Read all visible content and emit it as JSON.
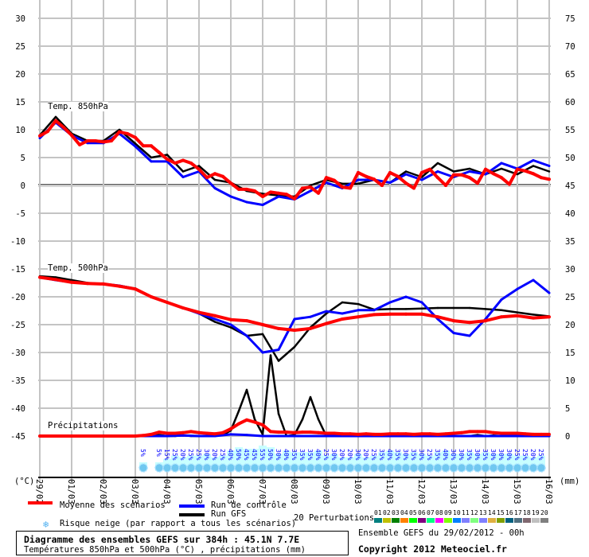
{
  "chart_data": {
    "type": "line",
    "x_unit": "forecast hour",
    "x_tick_labels": [
      "29/02",
      "01/03",
      "02/03",
      "03/03",
      "04/03",
      "05/03",
      "06/03",
      "07/03",
      "08/03",
      "09/03",
      "10/03",
      "11/03",
      "12/03",
      "13/03",
      "14/03",
      "15/03",
      "16/03"
    ],
    "x_range_hours": [
      0,
      384
    ],
    "left_axis": {
      "label": "(°C)",
      "ticks": [
        30,
        25,
        20,
        15,
        10,
        5,
        0,
        -5,
        -10,
        -15,
        -20,
        -25,
        -30,
        -35,
        -40,
        -45
      ],
      "ylim": [
        -45,
        30
      ]
    },
    "right_axis": {
      "label": "(mm)",
      "ticks": [
        75,
        70,
        65,
        60,
        55,
        50,
        45,
        40,
        35,
        30,
        25,
        20,
        15,
        10,
        5,
        0
      ],
      "ylim": [
        0,
        75
      ]
    },
    "grid": true,
    "panels": {
      "t850": {
        "label": "Temp. 850hPa",
        "series": [
          {
            "name": "Moyenne des scénarios",
            "color": "#ff0000",
            "step_h": 6,
            "values": [
              8.9,
              9.7,
              11.6,
              10.4,
              9.0,
              7.3,
              8.0,
              8.0,
              7.8,
              8.0,
              9.6,
              9.3,
              8.6,
              7.1,
              7.1,
              5.9,
              4.7,
              4.0,
              4.5,
              4.0,
              2.9,
              1.4,
              2.1,
              1.6,
              0.4,
              -0.7,
              -0.7,
              -1.0,
              -2.0,
              -1.2,
              -1.4,
              -1.6,
              -2.4,
              -0.5,
              -0.3,
              -1.4,
              1.4,
              0.9,
              -0.3,
              -0.5,
              2.3,
              1.6,
              1.1,
              0.0,
              2.3,
              1.6,
              0.4,
              -0.5,
              2.3,
              2.9,
              1.4,
              0.0,
              1.9,
              1.9,
              1.4,
              0.4,
              2.9,
              2.1,
              1.4,
              0.2,
              2.9,
              2.6,
              2.1,
              1.4,
              1.1
            ]
          },
          {
            "name": "Run de contrôle",
            "color": "#0000ff",
            "step_h": 12,
            "values": [
              8.5,
              11.3,
              9.0,
              7.6,
              7.6,
              9.3,
              7.0,
              4.3,
              4.3,
              1.5,
              2.5,
              -0.5,
              -2.0,
              -3.0,
              -3.5,
              -2.0,
              -2.5,
              -1.0,
              0.5,
              -0.5,
              1.0,
              1.0,
              0.5,
              2.0,
              1.0,
              2.5,
              1.5,
              2.5,
              2.0,
              4.0,
              3.0,
              4.5,
              3.5
            ]
          },
          {
            "name": "Run GFS",
            "color": "#000000",
            "step_h": 12,
            "values": [
              9.0,
              12.3,
              9.3,
              8.0,
              8.0,
              10.0,
              7.5,
              5.0,
              5.5,
              2.5,
              3.5,
              1.0,
              0.5,
              -1.0,
              -1.5,
              -1.8,
              -2.0,
              0.0,
              1.0,
              0.3,
              0.3,
              1.0,
              0.5,
              2.5,
              1.5,
              4.0,
              2.5,
              3.0,
              2.0,
              3.0,
              2.0,
              3.5,
              2.5
            ]
          }
        ]
      },
      "t500": {
        "label": "Temp. 500hPa",
        "series": [
          {
            "name": "Moyenne des scénarios",
            "color": "#ff0000",
            "step_h": 12,
            "values": [
              -16.5,
              -16.9,
              -17.4,
              -17.6,
              -17.7,
              -18.1,
              -18.6,
              -20.0,
              -21.0,
              -22.0,
              -22.8,
              -23.4,
              -24.1,
              -24.3,
              -25.0,
              -25.7,
              -26.0,
              -25.7,
              -24.8,
              -24.0,
              -23.6,
              -23.2,
              -23.1,
              -23.1,
              -23.1,
              -23.6,
              -24.3,
              -24.6,
              -24.3,
              -23.6,
              -23.4,
              -23.8,
              -23.6
            ]
          },
          {
            "name": "Run de contrôle",
            "color": "#0000ff",
            "step_h": 12,
            "values": [
              -16.5,
              -17.0,
              -17.4,
              -17.6,
              -17.7,
              -18.0,
              -18.6,
              -20.0,
              -21.0,
              -22.0,
              -23.0,
              -24.0,
              -25.0,
              -27.0,
              -30.0,
              -29.5,
              -24.0,
              -23.6,
              -22.6,
              -23.0,
              -22.4,
              -22.4,
              -21.0,
              -20.0,
              -21.0,
              -24.0,
              -26.5,
              -27.0,
              -24.0,
              -20.5,
              -18.6,
              -17.0,
              -19.3
            ]
          },
          {
            "name": "Run GFS",
            "color": "#000000",
            "step_h": 12,
            "values": [
              -16.3,
              -16.5,
              -17.0,
              -17.5,
              -17.7,
              -18.0,
              -18.5,
              -20.0,
              -21.0,
              -22.0,
              -23.0,
              -24.5,
              -25.5,
              -27.0,
              -26.7,
              -31.5,
              -29.0,
              -25.5,
              -23.0,
              -21.0,
              -21.3,
              -22.3,
              -22.2,
              -22.2,
              -22.1,
              -22.0,
              -22.0,
              -22.0,
              -22.2,
              -22.4,
              -22.8,
              -23.2,
              -23.5
            ]
          }
        ]
      },
      "precip": {
        "label": "Précipitations",
        "series": [
          {
            "name": "Moyenne des scénarios",
            "color": "#ff0000",
            "step_h": 6,
            "values": [
              0,
              0,
              0,
              0,
              0,
              0,
              0,
              0,
              0,
              0,
              0,
              0,
              0,
              0.1,
              0.3,
              0.7,
              0.5,
              0.5,
              0.6,
              0.8,
              0.6,
              0.5,
              0.4,
              0.6,
              1.3,
              2.2,
              2.9,
              2.5,
              2.0,
              0.8,
              0.7,
              0.7,
              0.6,
              0.7,
              0.7,
              0.6,
              0.5,
              0.5,
              0.4,
              0.4,
              0.3,
              0.4,
              0.3,
              0.3,
              0.4,
              0.4,
              0.4,
              0.3,
              0.4,
              0.4,
              0.3,
              0.4,
              0.5,
              0.6,
              0.8,
              0.8,
              0.8,
              0.6,
              0.5,
              0.5,
              0.5,
              0.4,
              0.3,
              0.3,
              0.3
            ]
          },
          {
            "name": "Run de contrôle",
            "color": "#0000ff",
            "step_h": 12,
            "values": [
              0,
              0,
              0,
              0,
              0,
              0,
              0,
              0,
              0,
              0.1,
              0,
              0,
              0.3,
              0.2,
              0,
              0,
              0,
              0,
              0,
              0,
              0,
              0,
              0,
              0,
              0,
              0,
              0,
              0,
              0,
              0,
              0,
              0,
              0
            ]
          },
          {
            "name": "Run GFS",
            "color": "#000000",
            "step_h": 6,
            "values": [
              0,
              0,
              0,
              0,
              0,
              0,
              0,
              0,
              0,
              0,
              0,
              0,
              0,
              0,
              0,
              0.2,
              0,
              0,
              0.1,
              0,
              0,
              0,
              0.1,
              0.2,
              1.0,
              4.5,
              8.3,
              3.0,
              0.3,
              14.5,
              4.0,
              0,
              0.2,
              3.0,
              7.0,
              3.0,
              0,
              0.1,
              0,
              0,
              0,
              0.1,
              0,
              0,
              0,
              0,
              0,
              0.1,
              0,
              0,
              0,
              0,
              0,
              0,
              0,
              0.2,
              0,
              0.1,
              0,
              0,
              0,
              0.2,
              0.1,
              0,
              0
            ]
          }
        ]
      }
    },
    "snow_risk": {
      "single": {
        "hour": 78,
        "pct": 5
      },
      "start_hour": 90,
      "step_h": 6,
      "pct": [
        5,
        15,
        25,
        20,
        25,
        25,
        30,
        20,
        25,
        40,
        50,
        45,
        45,
        55,
        50,
        30,
        40,
        35,
        35,
        35,
        40,
        25,
        30,
        20,
        20,
        30,
        20,
        25,
        35,
        40,
        35,
        30,
        35,
        30,
        25,
        35,
        40,
        30,
        30,
        35,
        30,
        35,
        30,
        30,
        30,
        25,
        25,
        20,
        25
      ]
    }
  },
  "legend": {
    "mean": "Moyenne des scénarios",
    "control": "Run de contrôle",
    "gfs": "Run GFS",
    "perturbations": "20 Perturbations",
    "snow": "Risque neige (par rapport a tous les scénarios)",
    "perturbation_items": [
      {
        "num": "01",
        "color": "#008080"
      },
      {
        "num": "02",
        "color": "#c0c000"
      },
      {
        "num": "03",
        "color": "#008000"
      },
      {
        "num": "04",
        "color": "#ff8000"
      },
      {
        "num": "05",
        "color": "#00ff00"
      },
      {
        "num": "06",
        "color": "#800080"
      },
      {
        "num": "07",
        "color": "#00ff80"
      },
      {
        "num": "08",
        "color": "#ff00ff"
      },
      {
        "num": "09",
        "color": "#80ff00"
      },
      {
        "num": "10",
        "color": "#0080ff"
      },
      {
        "num": "11",
        "color": "#8080ff"
      },
      {
        "num": "12",
        "color": "#80ff80"
      },
      {
        "num": "13",
        "color": "#8080ff"
      },
      {
        "num": "14",
        "color": "#e0b040"
      },
      {
        "num": "15",
        "color": "#80a000"
      },
      {
        "num": "16",
        "color": "#006080"
      },
      {
        "num": "17",
        "color": "#507080"
      },
      {
        "num": "18",
        "color": "#806870"
      },
      {
        "num": "19",
        "color": "#c0c0c0"
      },
      {
        "num": "20",
        "color": "#808080"
      }
    ]
  },
  "footer": {
    "title": "Diagramme des ensembles GEFS sur 384h : 45.1N 7.7E",
    "subtitle": "Températures 850hPa et 500hPa (°C) , précipitations (mm)",
    "run_info": "Ensemble GEFS du 29/02/2012 - 00h",
    "copyright": "Copyright 2012 Meteociel.fr"
  }
}
